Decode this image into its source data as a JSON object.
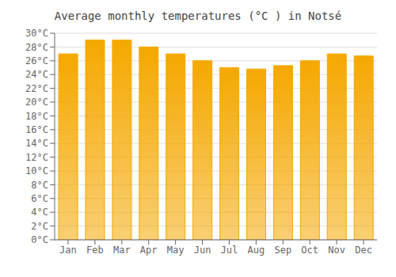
{
  "chart_data": {
    "type": "bar",
    "title": "Average monthly temperatures (°C ) in Notsé",
    "categories": [
      "Jan",
      "Feb",
      "Mar",
      "Apr",
      "May",
      "Jun",
      "Jul",
      "Aug",
      "Sep",
      "Oct",
      "Nov",
      "Dec"
    ],
    "values": [
      27.0,
      29.0,
      29.0,
      28.0,
      27.0,
      26.0,
      25.0,
      24.8,
      25.3,
      26.0,
      27.0,
      26.7
    ],
    "color": "#F5A800",
    "ylim": [
      0,
      30
    ],
    "yticks": [
      {
        "value": 0,
        "label": "0°C"
      },
      {
        "value": 2,
        "label": "2°C"
      },
      {
        "value": 4,
        "label": "4°C"
      },
      {
        "value": 6,
        "label": "6°C"
      },
      {
        "value": 8,
        "label": "8°C"
      },
      {
        "value": 10,
        "label": "10°C"
      },
      {
        "value": 12,
        "label": "12°C"
      },
      {
        "value": 14,
        "label": "14°C"
      },
      {
        "value": 16,
        "label": "16°C"
      },
      {
        "value": 18,
        "label": "18°C"
      },
      {
        "value": 20,
        "label": "20°C"
      },
      {
        "value": 22,
        "label": "22°C"
      },
      {
        "value": 24,
        "label": "24°C"
      },
      {
        "value": 26,
        "label": "26°C"
      },
      {
        "value": 28,
        "label": "28°C"
      },
      {
        "value": 30,
        "label": "30°C"
      }
    ],
    "grid": true
  }
}
